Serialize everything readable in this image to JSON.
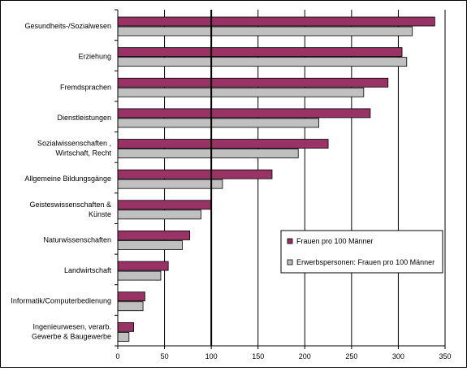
{
  "chart_data": {
    "type": "bar",
    "orientation": "horizontal",
    "categories": [
      [
        "Gesundheits-/Sozialwesen"
      ],
      [
        "Erziehung"
      ],
      [
        "Fremdsprachen"
      ],
      [
        "Dienstleistungen"
      ],
      [
        "Sozialwissenschaften ,",
        "Wirtschaft, Recht"
      ],
      [
        "Allgemeine Bildungsgänge"
      ],
      [
        "Geisteswissenschaften &",
        "Künste"
      ],
      [
        "Naturwissenschaften"
      ],
      [
        "Landwirtschaft"
      ],
      [
        "Informatik/Computerbedienung"
      ],
      [
        "Ingenieurwesen, verarb.",
        "Gewerbe & Baugewerbe"
      ]
    ],
    "series": [
      {
        "name": "Frauen pro 100 Männer",
        "color": "#993366",
        "values": [
          339,
          304,
          289,
          270,
          225,
          165,
          100,
          77,
          54,
          29,
          17
        ]
      },
      {
        "name": "Erwerbspersonen: Frauen pro 100 Männer",
        "color": "#c0c0c0",
        "values": [
          315,
          309,
          263,
          215,
          193,
          112,
          89,
          69,
          46,
          27,
          12
        ]
      }
    ],
    "xlim": [
      0,
      350
    ],
    "xticks": [
      0,
      50,
      100,
      150,
      200,
      250,
      300,
      350
    ],
    "reference_line": 100,
    "grid": true,
    "legend_position": "right"
  }
}
